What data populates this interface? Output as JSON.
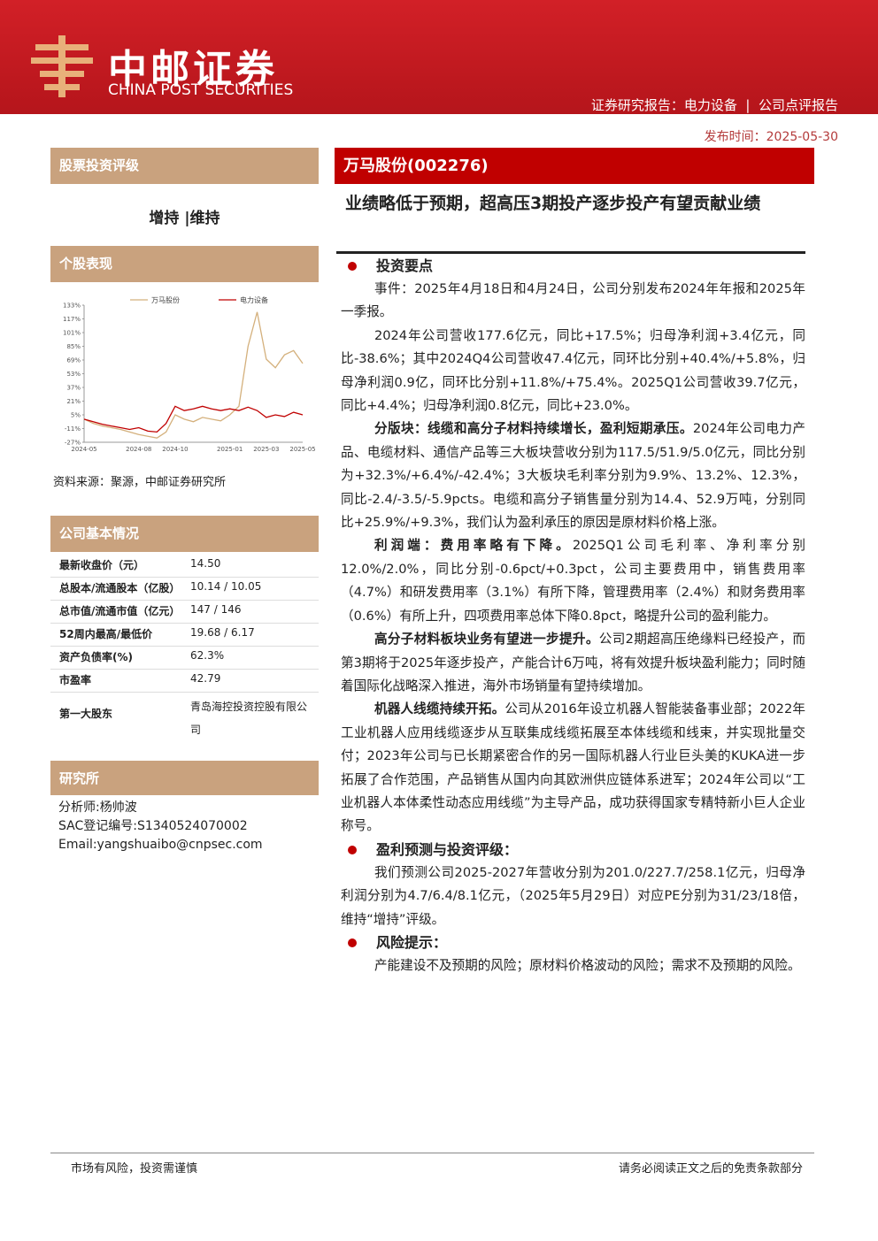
{
  "header": {
    "brand_cn": "中邮证券",
    "brand_en": "CHINA POST SECURITIES",
    "report_type": "证券研究报告：电力设备",
    "report_subtype": "公司点评报告",
    "publish_date": "发布时间：2025-05-30"
  },
  "left": {
    "rating_title": "股票投资评级",
    "rating": "增持 |维持",
    "performance_title": "个股表现",
    "chart_source": "资料来源：聚源，中邮证券研究所",
    "basics_title": "公司基本情况",
    "basics": [
      [
        "最新收盘价（元）",
        "14.50"
      ],
      [
        "总股本/流通股本（亿股）",
        "10.14 / 10.05"
      ],
      [
        "总市值/流通市值（亿元）",
        "147 / 146"
      ],
      [
        "52周内最高/最低价",
        "19.68 / 6.17"
      ],
      [
        "资产负债率(%)",
        "62.3%"
      ],
      [
        "市盈率",
        "42.79"
      ],
      [
        "第一大股东",
        "青岛海控投资控股有限公司"
      ]
    ],
    "institute_title": "研究所",
    "analyst": [
      "分析师:杨帅波",
      "SAC登记编号:S1340524070002",
      "Email:yangshuaibo@cnpsec.com"
    ]
  },
  "chart_data": {
    "type": "line",
    "categories": [
      "2024-05",
      null,
      null,
      null,
      null,
      null,
      "2024-08",
      null,
      null,
      null,
      "2024-10",
      null,
      null,
      null,
      null,
      null,
      "2025-01",
      null,
      null,
      null,
      "2025-03",
      null,
      null,
      null,
      "2025-05"
    ],
    "series": [
      {
        "name": "万马股份",
        "color": "#d4b07c",
        "values": [
          0,
          -5,
          -8,
          -10,
          -12,
          -15,
          -18,
          -20,
          -22,
          -15,
          5,
          0,
          -3,
          2,
          0,
          -2,
          5,
          15,
          85,
          125,
          70,
          60,
          75,
          80,
          65
        ]
      },
      {
        "name": "电力设备",
        "color": "#c00000",
        "values": [
          0,
          -3,
          -6,
          -8,
          -10,
          -12,
          -10,
          -14,
          -15,
          -5,
          15,
          10,
          12,
          15,
          12,
          10,
          12,
          10,
          14,
          10,
          2,
          5,
          3,
          8,
          5
        ]
      }
    ],
    "ylim": [
      -27,
      133
    ],
    "yticks": [
      {
        "value": -27,
        "label": "-27%"
      },
      {
        "value": -11,
        "label": "-11%"
      },
      {
        "value": 5,
        "label": "5%"
      },
      {
        "value": 21,
        "label": "21%"
      },
      {
        "value": 37,
        "label": "37%"
      },
      {
        "value": 53,
        "label": "53%"
      },
      {
        "value": 69,
        "label": "69%"
      },
      {
        "value": 85,
        "label": "85%"
      },
      {
        "value": 101,
        "label": "101%"
      },
      {
        "value": 117,
        "label": "117%"
      },
      {
        "value": 133,
        "label": "133%"
      }
    ]
  },
  "main": {
    "company": "万马股份(002276)",
    "headline": "业绩略低于预期，超高压3期投产逐步投产有望贡献业绩",
    "sections": [
      {
        "heading": "投资要点",
        "paragraphs": [
          {
            "text": "事件：2025年4月18日和4月24日，公司分别发布2024年年报和2025年一季报。"
          },
          {
            "text": "2024年公司营收177.6亿元，同比+17.5%；归母净利润+3.4亿元，同比-38.6%；其中2024Q4公司营收47.4亿元，同环比分别+40.4%/+5.8%，归母净利润0.9亿，同环比分别+11.8%/+75.4%。2025Q1公司营收39.7亿元，同比+4.4%；归母净利润0.8亿元，同比+23.0%。"
          },
          {
            "lead": "分版块：线缆和高分子材料持续增长，盈利短期承压。",
            "text": "2024年公司电力产品、电缆材料、通信产品等三大板块营收分别为117.5/51.9/5.0亿元，同比分别为+32.3%/+6.4%/-42.4%；3大板块毛利率分别为9.9%、13.2%、12.3%，同比-2.4/-3.5/-5.9pcts。电缆和高分子销售量分别为14.4、52.9万吨，分别同比+25.9%/+9.3%，我们认为盈利承压的原因是原材料价格上涨。"
          },
          {
            "lead": "利润端：费用率略有下降。",
            "text": "2025Q1公司毛利率、净利率分别12.0%/2.0%，同比分别-0.6pct/+0.3pct，公司主要费用中，销售费用率（4.7%）和研发费用率（3.1%）有所下降，管理费用率（2.4%）和财务费用率（0.6%）有所上升，四项费用率总体下降0.8pct，略提升公司的盈利能力。"
          },
          {
            "lead": "高分子材料板块业务有望进一步提升。",
            "text": "公司2期超高压绝缘料已经投产，而第3期将于2025年逐步投产，产能合计6万吨，将有效提升板块盈利能力；同时随着国际化战略深入推进，海外市场销量有望持续增加。"
          },
          {
            "lead": "机器人线缆持续开拓。",
            "text": "公司从2016年设立机器人智能装备事业部；2022年工业机器人应用线缆逐步从互联集成线缆拓展至本体线缆和线束，并实现批量交付；2023年公司与已长期紧密合作的另一国际机器人行业巨头美的KUKA进一步拓展了合作范围，产品销售从国内向其欧洲供应链体系进军；2024年公司以“工业机器人本体柔性动态应用线缆”为主导产品，成功获得国家专精特新小巨人企业称号。"
          }
        ]
      },
      {
        "heading": "盈利预测与投资评级：",
        "paragraphs": [
          {
            "text": "我们预测公司2025-2027年营收分别为201.0/227.7/258.1亿元，归母净利润分别为4.7/6.4/8.1亿元，（2025年5月29日）对应PE分别为31/23/18倍，维持“增持”评级。"
          }
        ]
      },
      {
        "heading": "风险提示：",
        "paragraphs": [
          {
            "text": "产能建设不及预期的风险；原材料价格波动的风险；需求不及预期的风险。"
          }
        ]
      }
    ]
  },
  "footer": {
    "left": "市场有风险，投资需谨慎",
    "right": "请务必阅读正文之后的免责条款部分"
  }
}
